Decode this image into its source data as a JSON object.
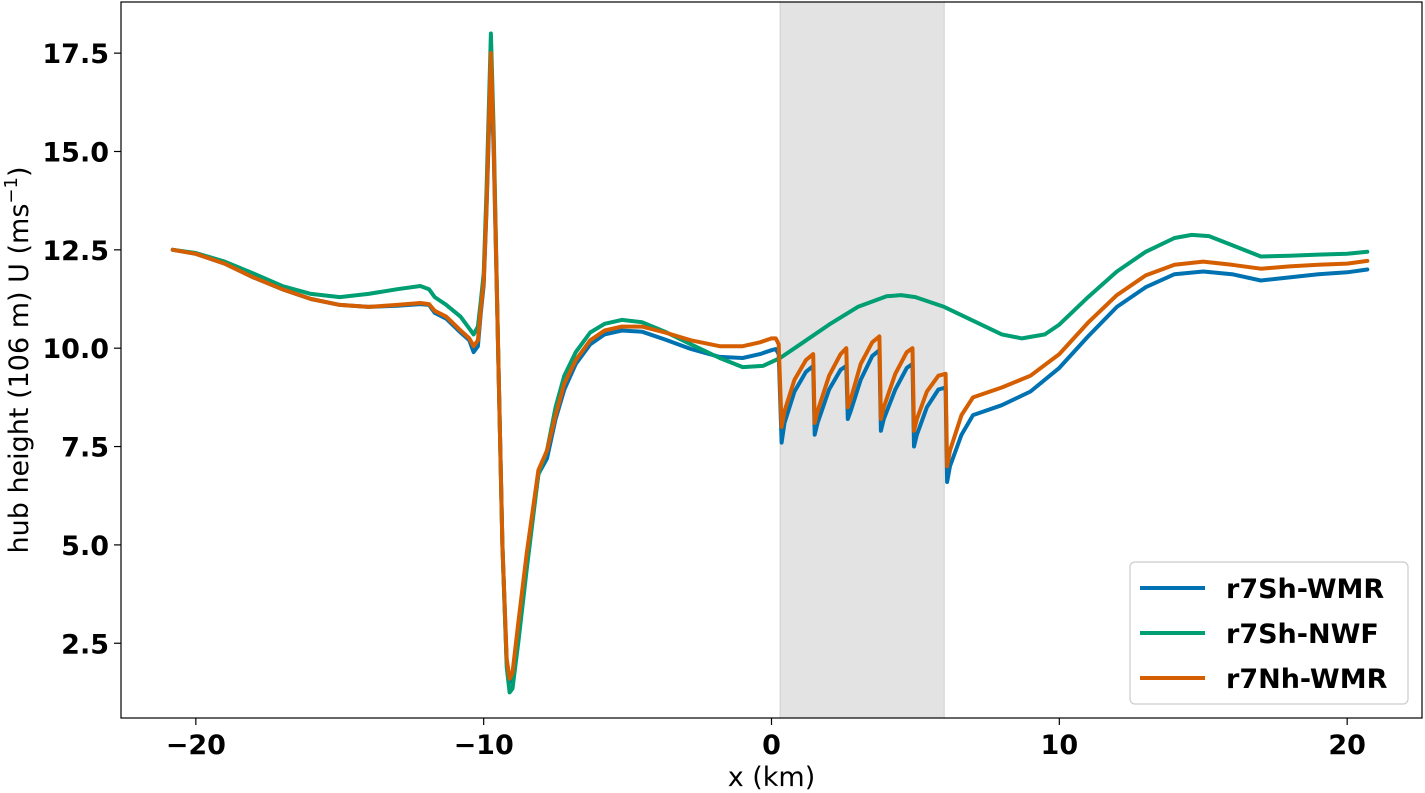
{
  "chart_data": {
    "type": "line",
    "title": "",
    "xlabel": "x (km)",
    "ylabel_main": "hub height (106 m) U (ms",
    "ylabel_sup": "−1",
    "ylabel_close": ")",
    "xlim": [
      -22.6,
      22.6
    ],
    "ylim": [
      0.6,
      18.8
    ],
    "xticks": [
      -20,
      -10,
      0,
      10,
      20
    ],
    "xtick_labels": [
      "−20",
      "−10",
      "0",
      "10",
      "20"
    ],
    "yticks": [
      2.5,
      5.0,
      7.5,
      10.0,
      12.5,
      15.0,
      17.5
    ],
    "ytick_labels": [
      "2.5",
      "5.0",
      "7.5",
      "10.0",
      "12.5",
      "15.0",
      "17.5"
    ],
    "shaded_region": {
      "x": [
        0.3,
        6.0
      ],
      "color": "#e3e3e3"
    },
    "legend_position": "lower-right",
    "series": [
      {
        "name": "r7Sh-WMR",
        "color": "#0072b2",
        "points": [
          [
            -20.8,
            12.5
          ],
          [
            -20,
            12.4
          ],
          [
            -19,
            12.15
          ],
          [
            -18,
            11.8
          ],
          [
            -17,
            11.5
          ],
          [
            -16,
            11.25
          ],
          [
            -15,
            11.1
          ],
          [
            -14,
            11.05
          ],
          [
            -13,
            11.08
          ],
          [
            -12.2,
            11.12
          ],
          [
            -11.9,
            11.1
          ],
          [
            -11.7,
            10.9
          ],
          [
            -11.3,
            10.75
          ],
          [
            -10.8,
            10.4
          ],
          [
            -10.5,
            10.2
          ],
          [
            -10.35,
            9.9
          ],
          [
            -10.2,
            10.05
          ],
          [
            -10.1,
            10.9
          ],
          [
            -10,
            11.6
          ],
          [
            -9.9,
            13.5
          ],
          [
            -9.75,
            17.2
          ],
          [
            -9.65,
            15
          ],
          [
            -9.5,
            10
          ],
          [
            -9.35,
            5
          ],
          [
            -9.2,
            2
          ],
          [
            -9.1,
            1.5
          ],
          [
            -9,
            1.7
          ],
          [
            -8.8,
            2.9
          ],
          [
            -8.5,
            4.6
          ],
          [
            -8.1,
            6.8
          ],
          [
            -7.8,
            7.2
          ],
          [
            -7.5,
            8.2
          ],
          [
            -7.2,
            8.95
          ],
          [
            -6.8,
            9.6
          ],
          [
            -6.3,
            10.1
          ],
          [
            -5.8,
            10.35
          ],
          [
            -5.2,
            10.45
          ],
          [
            -4.5,
            10.42
          ],
          [
            -3.7,
            10.22
          ],
          [
            -2.8,
            9.98
          ],
          [
            -1.8,
            9.78
          ],
          [
            -1,
            9.75
          ],
          [
            -0.4,
            9.85
          ],
          [
            0,
            9.95
          ],
          [
            0.15,
            9.98
          ],
          [
            0.25,
            9.85
          ],
          [
            0.35,
            7.6
          ],
          [
            0.45,
            8.1
          ],
          [
            0.8,
            8.9
          ],
          [
            1.2,
            9.4
          ],
          [
            1.45,
            9.55
          ],
          [
            1.5,
            7.8
          ],
          [
            1.6,
            8.1
          ],
          [
            2,
            8.95
          ],
          [
            2.4,
            9.45
          ],
          [
            2.6,
            9.55
          ],
          [
            2.65,
            8.2
          ],
          [
            2.75,
            8.4
          ],
          [
            3.1,
            9.2
          ],
          [
            3.5,
            9.8
          ],
          [
            3.75,
            9.95
          ],
          [
            3.8,
            7.9
          ],
          [
            3.9,
            8.2
          ],
          [
            4.3,
            8.95
          ],
          [
            4.7,
            9.5
          ],
          [
            4.9,
            9.6
          ],
          [
            4.95,
            7.5
          ],
          [
            5.05,
            7.8
          ],
          [
            5.4,
            8.5
          ],
          [
            5.8,
            8.95
          ],
          [
            6.05,
            9.0
          ],
          [
            6.1,
            6.6
          ],
          [
            6.2,
            7.0
          ],
          [
            6.6,
            7.8
          ],
          [
            7,
            8.3
          ],
          [
            8,
            8.55
          ],
          [
            9,
            8.9
          ],
          [
            10,
            9.5
          ],
          [
            11,
            10.3
          ],
          [
            12,
            11.05
          ],
          [
            13,
            11.55
          ],
          [
            14,
            11.88
          ],
          [
            15,
            11.95
          ],
          [
            16,
            11.88
          ],
          [
            17,
            11.72
          ],
          [
            18,
            11.8
          ],
          [
            19,
            11.88
          ],
          [
            20,
            11.93
          ],
          [
            20.7,
            12.0
          ]
        ]
      },
      {
        "name": "r7Sh-NWF",
        "color": "#009e73",
        "points": [
          [
            -20.8,
            12.5
          ],
          [
            -20,
            12.42
          ],
          [
            -19,
            12.2
          ],
          [
            -18,
            11.9
          ],
          [
            -17,
            11.58
          ],
          [
            -16,
            11.38
          ],
          [
            -15,
            11.3
          ],
          [
            -14,
            11.38
          ],
          [
            -13,
            11.5
          ],
          [
            -12.2,
            11.58
          ],
          [
            -11.9,
            11.5
          ],
          [
            -11.7,
            11.3
          ],
          [
            -11.3,
            11.1
          ],
          [
            -10.8,
            10.8
          ],
          [
            -10.5,
            10.5
          ],
          [
            -10.35,
            10.35
          ],
          [
            -10.2,
            10.55
          ],
          [
            -10.1,
            11.2
          ],
          [
            -10,
            11.9
          ],
          [
            -9.9,
            14
          ],
          [
            -9.75,
            18.0
          ],
          [
            -9.65,
            15.5
          ],
          [
            -9.5,
            10
          ],
          [
            -9.35,
            5
          ],
          [
            -9.2,
            1.9
          ],
          [
            -9.1,
            1.25
          ],
          [
            -9,
            1.35
          ],
          [
            -8.8,
            2.5
          ],
          [
            -8.5,
            4.4
          ],
          [
            -8.1,
            6.8
          ],
          [
            -7.8,
            7.4
          ],
          [
            -7.5,
            8.5
          ],
          [
            -7.2,
            9.3
          ],
          [
            -6.8,
            9.9
          ],
          [
            -6.3,
            10.4
          ],
          [
            -5.8,
            10.62
          ],
          [
            -5.2,
            10.72
          ],
          [
            -4.5,
            10.66
          ],
          [
            -3.7,
            10.42
          ],
          [
            -2.8,
            10.1
          ],
          [
            -1.8,
            9.75
          ],
          [
            -1,
            9.52
          ],
          [
            -0.3,
            9.55
          ],
          [
            0.3,
            9.75
          ],
          [
            1,
            10.1
          ],
          [
            2,
            10.6
          ],
          [
            3,
            11.05
          ],
          [
            4,
            11.32
          ],
          [
            4.5,
            11.35
          ],
          [
            5,
            11.3
          ],
          [
            6,
            11.05
          ],
          [
            7,
            10.7
          ],
          [
            8,
            10.35
          ],
          [
            8.7,
            10.25
          ],
          [
            9.5,
            10.35
          ],
          [
            10,
            10.6
          ],
          [
            11,
            11.3
          ],
          [
            12,
            11.95
          ],
          [
            13,
            12.45
          ],
          [
            14,
            12.8
          ],
          [
            14.6,
            12.88
          ],
          [
            15.2,
            12.85
          ],
          [
            16,
            12.62
          ],
          [
            17,
            12.33
          ],
          [
            18,
            12.35
          ],
          [
            19,
            12.38
          ],
          [
            20,
            12.4
          ],
          [
            20.7,
            12.45
          ]
        ]
      },
      {
        "name": "r7Nh-WMR",
        "color": "#d55e00",
        "points": [
          [
            -20.8,
            12.5
          ],
          [
            -20,
            12.4
          ],
          [
            -19,
            12.15
          ],
          [
            -18,
            11.8
          ],
          [
            -17,
            11.5
          ],
          [
            -16,
            11.25
          ],
          [
            -15,
            11.1
          ],
          [
            -14,
            11.05
          ],
          [
            -13,
            11.1
          ],
          [
            -12.2,
            11.15
          ],
          [
            -11.9,
            11.12
          ],
          [
            -11.7,
            10.95
          ],
          [
            -11.3,
            10.8
          ],
          [
            -10.8,
            10.45
          ],
          [
            -10.5,
            10.25
          ],
          [
            -10.35,
            10.05
          ],
          [
            -10.2,
            10.2
          ],
          [
            -10.1,
            11.0
          ],
          [
            -10,
            11.7
          ],
          [
            -9.9,
            13.6
          ],
          [
            -9.75,
            17.5
          ],
          [
            -9.65,
            15.2
          ],
          [
            -9.5,
            10
          ],
          [
            -9.35,
            5
          ],
          [
            -9.2,
            2.1
          ],
          [
            -9.1,
            1.6
          ],
          [
            -9,
            1.75
          ],
          [
            -8.8,
            3.0
          ],
          [
            -8.5,
            4.8
          ],
          [
            -8.1,
            6.9
          ],
          [
            -7.8,
            7.4
          ],
          [
            -7.5,
            8.3
          ],
          [
            -7.2,
            9.1
          ],
          [
            -6.8,
            9.7
          ],
          [
            -6.3,
            10.2
          ],
          [
            -5.8,
            10.45
          ],
          [
            -5.2,
            10.55
          ],
          [
            -4.5,
            10.55
          ],
          [
            -3.7,
            10.4
          ],
          [
            -2.8,
            10.2
          ],
          [
            -1.8,
            10.05
          ],
          [
            -1,
            10.05
          ],
          [
            -0.4,
            10.15
          ],
          [
            0,
            10.25
          ],
          [
            0.15,
            10.25
          ],
          [
            0.25,
            10.1
          ],
          [
            0.35,
            8.0
          ],
          [
            0.45,
            8.4
          ],
          [
            0.8,
            9.2
          ],
          [
            1.2,
            9.7
          ],
          [
            1.45,
            9.85
          ],
          [
            1.5,
            8.1
          ],
          [
            1.6,
            8.4
          ],
          [
            2,
            9.3
          ],
          [
            2.4,
            9.85
          ],
          [
            2.6,
            10.0
          ],
          [
            2.65,
            8.5
          ],
          [
            2.75,
            8.7
          ],
          [
            3.1,
            9.6
          ],
          [
            3.5,
            10.15
          ],
          [
            3.75,
            10.3
          ],
          [
            3.8,
            8.2
          ],
          [
            3.9,
            8.5
          ],
          [
            4.3,
            9.35
          ],
          [
            4.7,
            9.9
          ],
          [
            4.9,
            10.0
          ],
          [
            4.95,
            7.9
          ],
          [
            5.05,
            8.2
          ],
          [
            5.4,
            8.9
          ],
          [
            5.8,
            9.3
          ],
          [
            6.05,
            9.35
          ],
          [
            6.1,
            7.0
          ],
          [
            6.2,
            7.4
          ],
          [
            6.6,
            8.3
          ],
          [
            7,
            8.75
          ],
          [
            8,
            9.0
          ],
          [
            9,
            9.3
          ],
          [
            10,
            9.85
          ],
          [
            11,
            10.65
          ],
          [
            12,
            11.35
          ],
          [
            13,
            11.85
          ],
          [
            14,
            12.12
          ],
          [
            15,
            12.2
          ],
          [
            16,
            12.12
          ],
          [
            17,
            12.02
          ],
          [
            18,
            12.08
          ],
          [
            19,
            12.12
          ],
          [
            20,
            12.15
          ],
          [
            20.7,
            12.22
          ]
        ]
      }
    ]
  }
}
